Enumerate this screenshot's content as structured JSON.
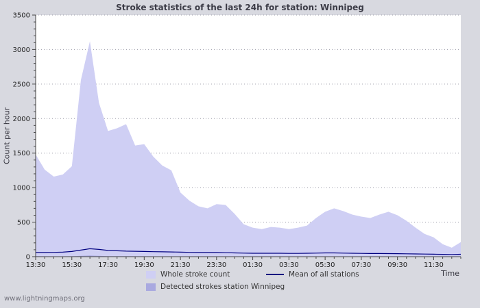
{
  "page": {
    "background": "#d8d9e0",
    "watermark": "www.lightningmaps.org"
  },
  "chart_data": {
    "type": "area",
    "title": "Stroke statistics of the last 24h for station: Winnipeg",
    "ylabel": "Count per hour",
    "xlabel": "Time",
    "ylim": [
      0,
      3500
    ],
    "ytick_step": 500,
    "grid": true,
    "legend_position": "bottom",
    "x": [
      "13:30",
      "14:00",
      "14:30",
      "15:00",
      "15:30",
      "16:00",
      "16:30",
      "17:00",
      "17:30",
      "18:00",
      "18:30",
      "19:00",
      "19:30",
      "20:00",
      "20:30",
      "21:00",
      "21:30",
      "22:00",
      "22:30",
      "23:00",
      "23:30",
      "00:00",
      "00:30",
      "01:00",
      "01:30",
      "02:00",
      "02:30",
      "03:00",
      "03:30",
      "04:00",
      "04:30",
      "05:00",
      "05:30",
      "06:00",
      "06:30",
      "07:00",
      "07:30",
      "08:00",
      "08:30",
      "09:00",
      "09:30",
      "10:00",
      "10:30",
      "11:00",
      "11:30",
      "12:00",
      "12:30",
      "13:00"
    ],
    "xtick_every": 4,
    "xtick_labels": [
      "13:30",
      "15:30",
      "17:30",
      "19:30",
      "21:30",
      "23:30",
      "01:30",
      "03:30",
      "05:30",
      "07:30",
      "09:30",
      "11:30"
    ],
    "series": [
      {
        "name": "Whole stroke count",
        "type": "area",
        "color": "#cfcff4",
        "values": [
          1480,
          1260,
          1160,
          1190,
          1310,
          2560,
          3120,
          2230,
          1820,
          1860,
          1920,
          1610,
          1630,
          1450,
          1320,
          1250,
          930,
          810,
          730,
          700,
          760,
          750,
          620,
          470,
          420,
          400,
          430,
          420,
          400,
          420,
          450,
          560,
          650,
          700,
          660,
          610,
          580,
          560,
          610,
          650,
          600,
          520,
          420,
          330,
          280,
          180,
          130,
          210
        ]
      },
      {
        "name": "Detected strokes station Winnipeg",
        "type": "area",
        "color": "#a9a9e0",
        "values": [
          8,
          6,
          5,
          5,
          6,
          12,
          18,
          12,
          8,
          7,
          7,
          6,
          6,
          5,
          5,
          5,
          4,
          4,
          3,
          3,
          3,
          3,
          3,
          2,
          2,
          2,
          2,
          2,
          2,
          2,
          2,
          3,
          3,
          3,
          3,
          2,
          2,
          2,
          2,
          2,
          2,
          2,
          2,
          1,
          1,
          1,
          1,
          2
        ]
      },
      {
        "name": "Mean of all stations",
        "type": "line",
        "color": "#000080",
        "values": [
          60,
          60,
          62,
          65,
          75,
          95,
          115,
          105,
          90,
          85,
          80,
          78,
          75,
          72,
          70,
          68,
          65,
          62,
          60,
          60,
          60,
          58,
          55,
          52,
          50,
          50,
          50,
          50,
          48,
          48,
          50,
          52,
          55,
          55,
          52,
          50,
          48,
          46,
          46,
          45,
          44,
          42,
          40,
          38,
          36,
          34,
          32,
          35
        ]
      }
    ],
    "colors": {
      "plot_background": "#ffffff",
      "grid_line": "#9a9aa6",
      "axis": "#444444"
    }
  }
}
